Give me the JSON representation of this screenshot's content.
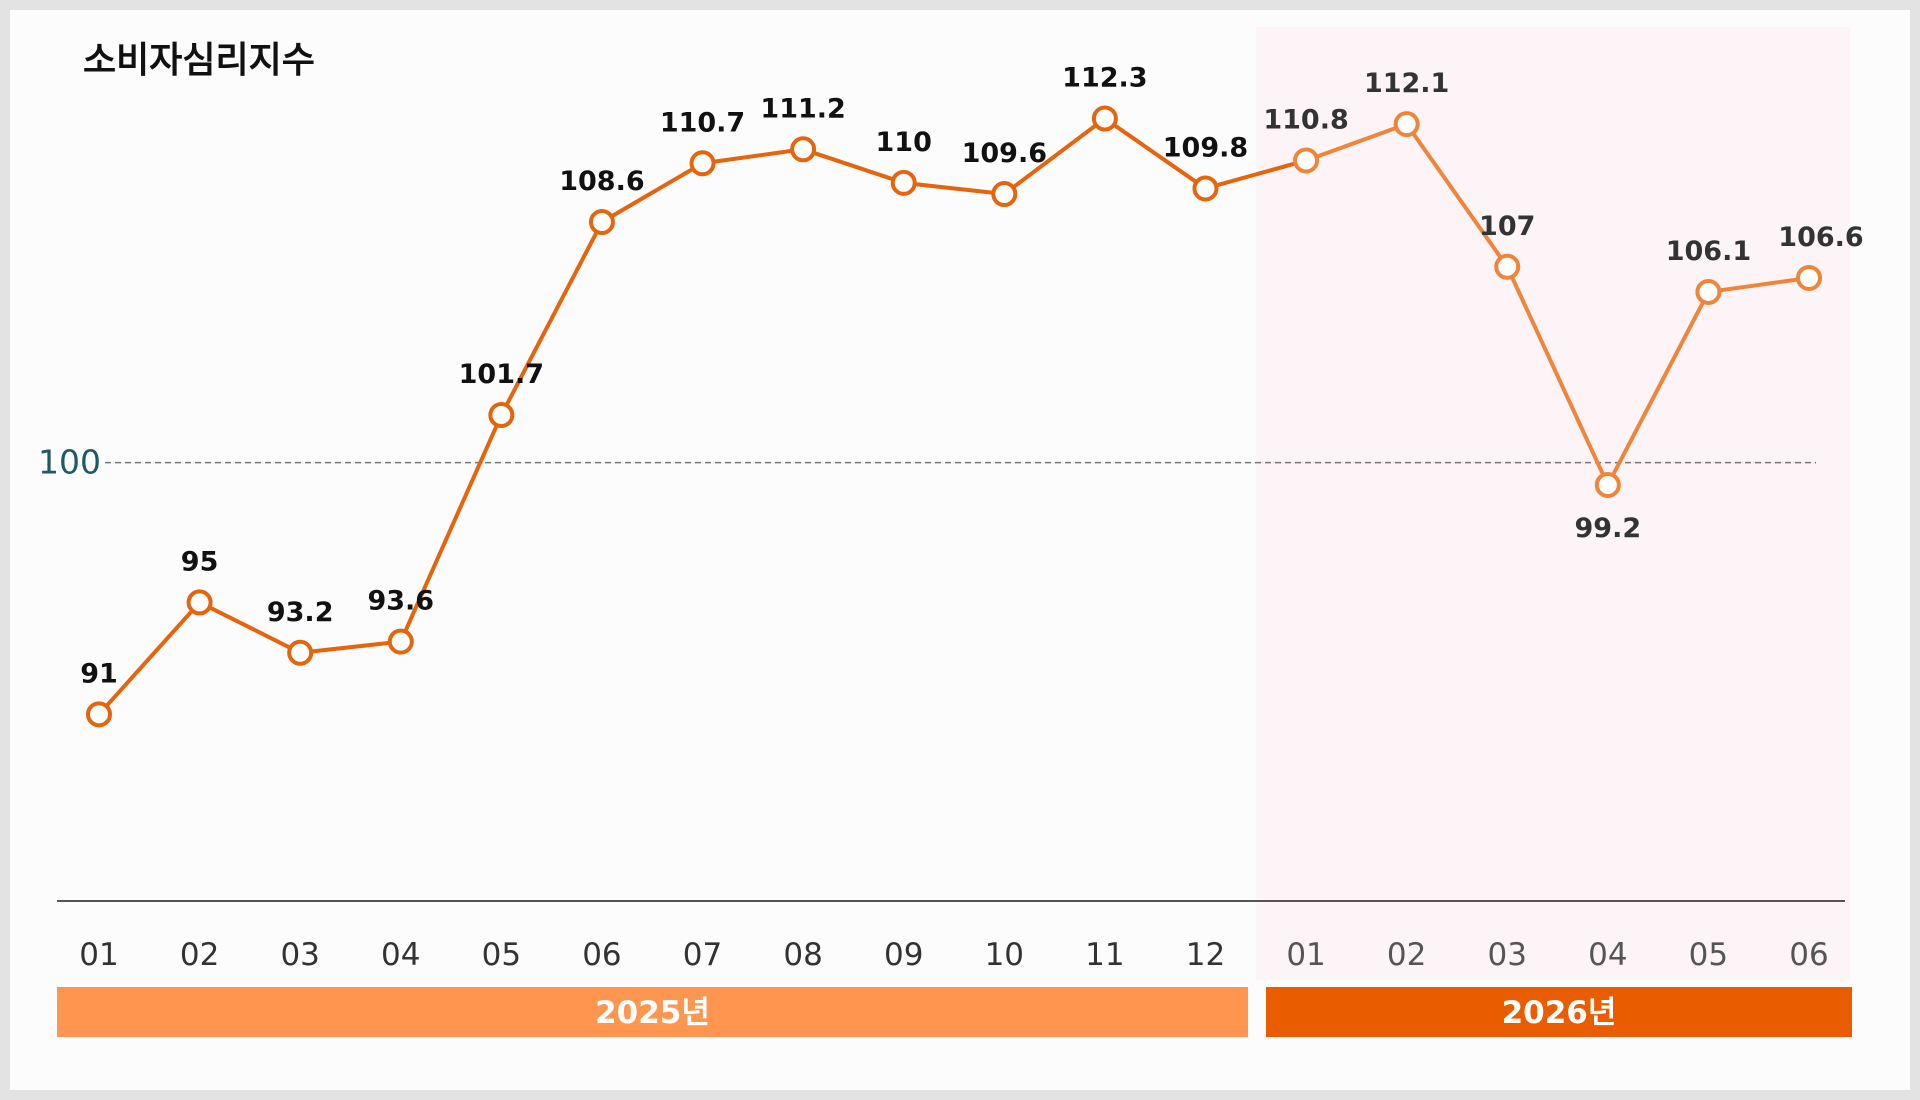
{
  "chart_data": {
    "type": "line",
    "title": "소비자심리지수",
    "categories": [
      "01",
      "02",
      "03",
      "04",
      "05",
      "06",
      "07",
      "08",
      "09",
      "10",
      "11",
      "12",
      "01",
      "02",
      "03",
      "04",
      "05",
      "06"
    ],
    "values": [
      91,
      95,
      93.2,
      93.6,
      101.7,
      108.6,
      110.7,
      111.2,
      110,
      109.6,
      112.3,
      109.8,
      110.8,
      112.1,
      107,
      99.2,
      106.1,
      106.6
    ],
    "data_labels": [
      "91",
      "95",
      "93.2",
      "93.6",
      "101.7",
      "108.6",
      "110.7",
      "111.2",
      "110",
      "109.6",
      "112.3",
      "109.8",
      "110.8",
      "112.1",
      "107",
      "99.2",
      "106.1",
      "106.6"
    ],
    "year_groups": [
      {
        "label": "2025년",
        "start": 0,
        "end": 11,
        "color": "#ff9650"
      },
      {
        "label": "2026년",
        "start": 12,
        "end": 17,
        "color": "#e95c00"
      }
    ],
    "reference_line": {
      "value": 100,
      "label": "100"
    },
    "highlight_group": 1,
    "ylim": [
      80,
      115
    ],
    "grid": false,
    "xlabel": "",
    "ylabel": "",
    "colors": {
      "line_2025": "#e5640c",
      "line_2026": "#f0853a",
      "highlight_bg": "#fcf4f6",
      "axis": "#555555",
      "reference": "#777777"
    }
  }
}
